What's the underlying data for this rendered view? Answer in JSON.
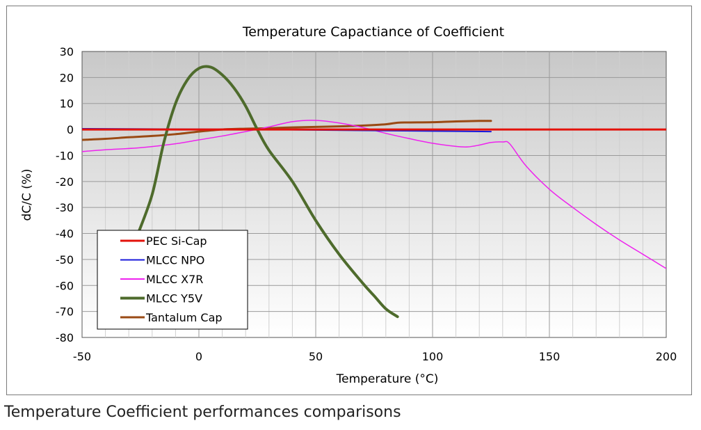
{
  "chart_data": {
    "type": "line",
    "title": "Temperature Capactiance of Coefficient",
    "xlabel": "Temperature (°C)",
    "ylabel": "dC/C (%)",
    "xlim": [
      -50,
      200
    ],
    "ylim": [
      -80,
      30
    ],
    "x_ticks": [
      -50,
      0,
      50,
      100,
      150,
      200
    ],
    "y_ticks": [
      30,
      20,
      10,
      0,
      -10,
      -20,
      -30,
      -40,
      -50,
      -60,
      -70,
      -80
    ],
    "grid": true,
    "legend_position": "lower-left",
    "background": "gradient gray to white",
    "series": [
      {
        "name": "PEC Si-Cap",
        "color": "#e3120b",
        "width": 3,
        "points": [
          [
            -50,
            0
          ],
          [
            0,
            0
          ],
          [
            50,
            0
          ],
          [
            100,
            0
          ],
          [
            150,
            0
          ],
          [
            200,
            0
          ]
        ]
      },
      {
        "name": "MLCC NPO",
        "color": "#1a1adb",
        "width": 2,
        "points": [
          [
            -50,
            0.3
          ],
          [
            0,
            0.1
          ],
          [
            25,
            0
          ],
          [
            50,
            -0.2
          ],
          [
            75,
            -0.4
          ],
          [
            100,
            -0.6
          ],
          [
            125,
            -0.8
          ]
        ]
      },
      {
        "name": "MLCC X7R",
        "color": "#ee22ee",
        "width": 1.5,
        "points": [
          [
            -50,
            -8.5
          ],
          [
            -40,
            -7.8
          ],
          [
            -25,
            -7
          ],
          [
            -10,
            -5.5
          ],
          [
            0,
            -4
          ],
          [
            10,
            -2.5
          ],
          [
            20,
            -0.8
          ],
          [
            30,
            1
          ],
          [
            40,
            3
          ],
          [
            50,
            3.5
          ],
          [
            60,
            2.5
          ],
          [
            70,
            0.8
          ],
          [
            80,
            -1.5
          ],
          [
            90,
            -3.5
          ],
          [
            100,
            -5.3
          ],
          [
            110,
            -6.5
          ],
          [
            115,
            -6.7
          ],
          [
            120,
            -6
          ],
          [
            125,
            -5
          ],
          [
            130,
            -4.8
          ],
          [
            133,
            -5.5
          ],
          [
            140,
            -14
          ],
          [
            150,
            -23
          ],
          [
            160,
            -30
          ],
          [
            170,
            -36.5
          ],
          [
            180,
            -42.5
          ],
          [
            190,
            -48
          ],
          [
            200,
            -53.5
          ]
        ]
      },
      {
        "name": "MLCC Y5V",
        "color": "#4e6b2c",
        "width": 4,
        "points": [
          [
            -26,
            -40
          ],
          [
            -20,
            -25
          ],
          [
            -15,
            -5
          ],
          [
            -10,
            10
          ],
          [
            -5,
            19
          ],
          [
            0,
            23.5
          ],
          [
            5,
            24
          ],
          [
            10,
            21
          ],
          [
            15,
            16
          ],
          [
            20,
            9
          ],
          [
            25,
            0
          ],
          [
            30,
            -8
          ],
          [
            40,
            -20
          ],
          [
            50,
            -35
          ],
          [
            60,
            -48
          ],
          [
            70,
            -59
          ],
          [
            75,
            -64
          ],
          [
            80,
            -69
          ],
          [
            85,
            -72
          ]
        ]
      },
      {
        "name": "Tantalum Cap",
        "color": "#9a4a14",
        "width": 3,
        "points": [
          [
            -50,
            -4
          ],
          [
            -40,
            -3.6
          ],
          [
            -30,
            -3
          ],
          [
            -20,
            -2.5
          ],
          [
            -10,
            -1.8
          ],
          [
            0,
            -0.8
          ],
          [
            10,
            0
          ],
          [
            20,
            0.3
          ],
          [
            30,
            0.5
          ],
          [
            40,
            0.8
          ],
          [
            50,
            1
          ],
          [
            60,
            1.2
          ],
          [
            70,
            1.5
          ],
          [
            80,
            2
          ],
          [
            85,
            2.6
          ],
          [
            90,
            2.7
          ],
          [
            100,
            2.8
          ],
          [
            110,
            3.1
          ],
          [
            120,
            3.3
          ],
          [
            125,
            3.3
          ]
        ]
      }
    ]
  },
  "caption": "Temperature Coefficient performances comparisons"
}
